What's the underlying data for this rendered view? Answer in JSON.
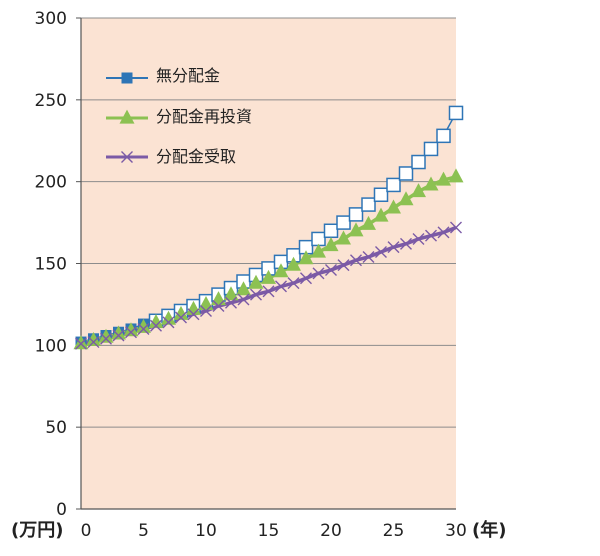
{
  "chart_data": {
    "type": "line",
    "x_unit_label": "(年)",
    "y_unit_label": "(万円)",
    "xlim": [
      0,
      30
    ],
    "ylim": [
      0,
      300
    ],
    "x_ticks": [
      0,
      5,
      10,
      15,
      20,
      25,
      30
    ],
    "y_ticks": [
      0,
      50,
      100,
      150,
      200,
      250,
      300
    ],
    "grid": "horizontal",
    "legend_position": "top-left",
    "background": "#fbe3d3",
    "x": [
      0,
      1,
      2,
      3,
      4,
      5,
      6,
      7,
      8,
      9,
      10,
      11,
      12,
      13,
      14,
      15,
      16,
      17,
      18,
      19,
      20,
      21,
      22,
      23,
      24,
      25,
      26,
      27,
      28,
      29,
      30
    ],
    "series": [
      {
        "name": "無分配金",
        "color": "#2e75b6",
        "marker": "square",
        "values": [
          102,
          104,
          106,
          108,
          110,
          113,
          115,
          118,
          121,
          124,
          127,
          131,
          135,
          139,
          143,
          147,
          151,
          155,
          160,
          165,
          170,
          175,
          180,
          186,
          192,
          198,
          205,
          212,
          220,
          228,
          242
        ]
      },
      {
        "name": "分配金再投資",
        "color": "#8cc152",
        "marker": "triangle",
        "values": [
          101,
          103,
          105,
          107,
          109,
          111,
          114,
          116,
          119,
          122,
          125,
          128,
          131,
          134,
          138,
          141,
          145,
          149,
          153,
          157,
          161,
          165,
          170,
          174,
          179,
          184,
          189,
          194,
          198,
          201,
          203
        ]
      },
      {
        "name": "分配金受取",
        "color": "#7b5aa6",
        "marker": "x",
        "values": [
          101,
          102,
          104,
          106,
          108,
          110,
          112,
          114,
          117,
          119,
          121,
          124,
          126,
          128,
          131,
          133,
          136,
          138,
          141,
          144,
          146,
          149,
          152,
          154,
          157,
          160,
          162,
          165,
          167,
          169,
          172
        ]
      }
    ]
  }
}
